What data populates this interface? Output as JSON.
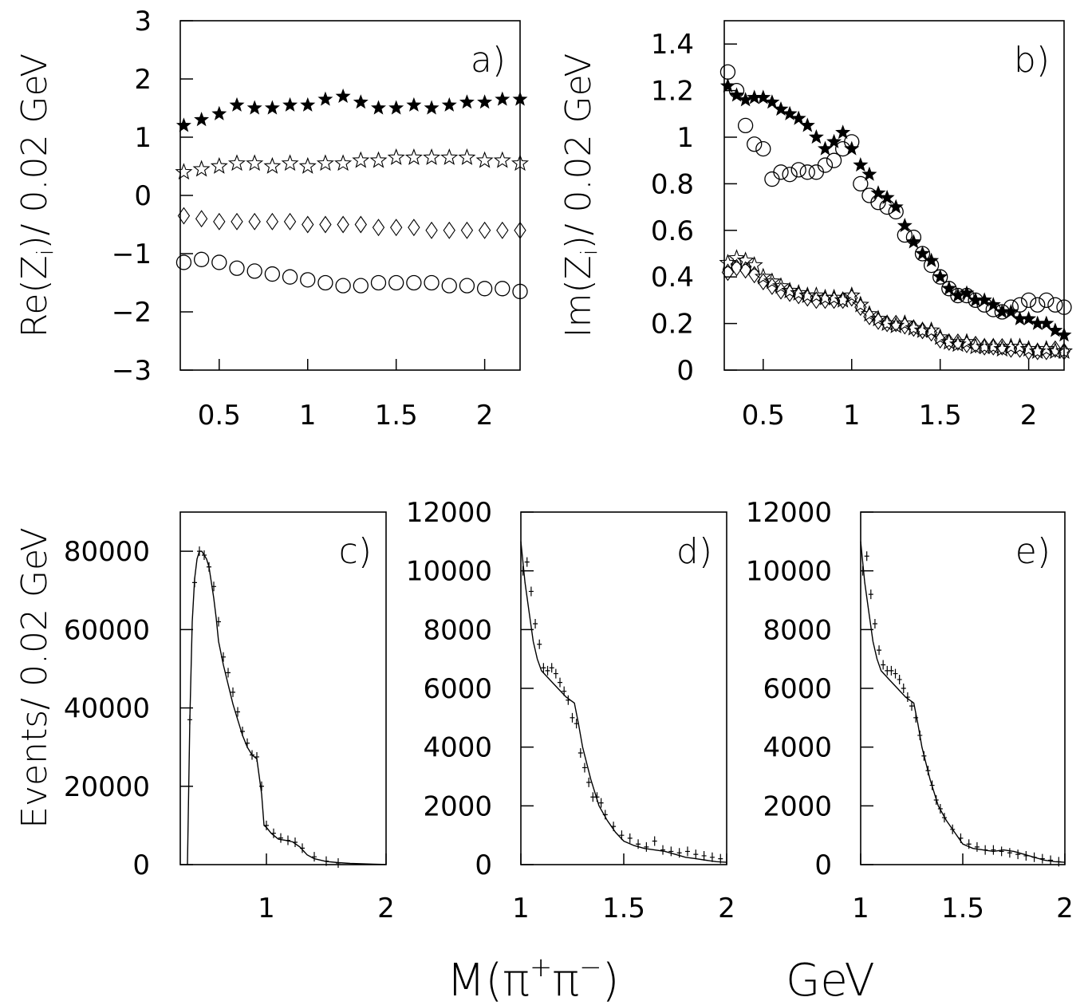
{
  "y_label_top_a": "Re(Z",
  "y_label_top_a_sub": "i",
  "y_label_top_a_rest": ")/ 0.02 GeV",
  "y_label_top_b": "Im(Z",
  "y_label_top_b_sub": "i",
  "y_label_top_b_rest": ")/ 0.02 GeV",
  "y_label_bottom": "Events/ 0.02 GeV",
  "x_label_main": "M(π",
  "x_label_sup1": "+",
  "x_label_mid": "π",
  "x_label_sup2": "−",
  "x_label_close": ")",
  "x_label_unit": "GeV",
  "chart_data": [
    {
      "panel": "a)",
      "type": "scatter",
      "xlim": [
        0.28,
        2.2
      ],
      "ylim": [
        -3,
        3
      ],
      "xticks": [
        "0.5",
        "1",
        "1.5",
        "2"
      ],
      "yticks": [
        "−3",
        "−2",
        "−1",
        "0",
        "1",
        "2",
        "3"
      ],
      "series": [
        {
          "marker": "filled-star",
          "x": [
            0.3,
            0.4,
            0.5,
            0.6,
            0.7,
            0.8,
            0.9,
            1.0,
            1.1,
            1.2,
            1.3,
            1.4,
            1.5,
            1.6,
            1.7,
            1.8,
            1.9,
            2.0,
            2.1,
            2.2
          ],
          "y": [
            1.2,
            1.3,
            1.4,
            1.55,
            1.5,
            1.5,
            1.55,
            1.55,
            1.65,
            1.7,
            1.6,
            1.5,
            1.5,
            1.55,
            1.5,
            1.55,
            1.6,
            1.6,
            1.65,
            1.65
          ]
        },
        {
          "marker": "open-star",
          "x": [
            0.3,
            0.4,
            0.5,
            0.6,
            0.7,
            0.8,
            0.9,
            1.0,
            1.1,
            1.2,
            1.3,
            1.4,
            1.5,
            1.6,
            1.7,
            1.8,
            1.9,
            2.0,
            2.1,
            2.2
          ],
          "y": [
            0.4,
            0.45,
            0.5,
            0.55,
            0.55,
            0.5,
            0.55,
            0.5,
            0.55,
            0.55,
            0.6,
            0.6,
            0.65,
            0.65,
            0.65,
            0.65,
            0.65,
            0.6,
            0.6,
            0.55
          ]
        },
        {
          "marker": "open-diamond",
          "x": [
            0.3,
            0.4,
            0.5,
            0.6,
            0.7,
            0.8,
            0.9,
            1.0,
            1.1,
            1.2,
            1.3,
            1.4,
            1.5,
            1.6,
            1.7,
            1.8,
            1.9,
            2.0,
            2.1,
            2.2
          ],
          "y": [
            -0.35,
            -0.4,
            -0.45,
            -0.45,
            -0.45,
            -0.45,
            -0.45,
            -0.5,
            -0.5,
            -0.5,
            -0.5,
            -0.55,
            -0.55,
            -0.55,
            -0.6,
            -0.6,
            -0.6,
            -0.6,
            -0.6,
            -0.6
          ]
        },
        {
          "marker": "open-circle",
          "x": [
            0.3,
            0.4,
            0.5,
            0.6,
            0.7,
            0.8,
            0.9,
            1.0,
            1.1,
            1.2,
            1.3,
            1.4,
            1.5,
            1.6,
            1.7,
            1.8,
            1.9,
            2.0,
            2.1,
            2.2
          ],
          "y": [
            -1.15,
            -1.1,
            -1.15,
            -1.25,
            -1.3,
            -1.35,
            -1.4,
            -1.45,
            -1.5,
            -1.55,
            -1.55,
            -1.5,
            -1.5,
            -1.5,
            -1.5,
            -1.55,
            -1.55,
            -1.6,
            -1.6,
            -1.65
          ]
        }
      ]
    },
    {
      "panel": "b)",
      "type": "scatter",
      "xlim": [
        0.28,
        2.2
      ],
      "ylim": [
        0,
        1.5
      ],
      "xticks": [
        "0.5",
        "1",
        "1.5",
        "2"
      ],
      "yticks": [
        "0",
        "0.2",
        "0.4",
        "0.6",
        "0.8",
        "1",
        "1.2",
        "1.4"
      ],
      "series": [
        {
          "marker": "filled-star",
          "x": [
            0.3,
            0.35,
            0.4,
            0.45,
            0.5,
            0.55,
            0.6,
            0.65,
            0.7,
            0.75,
            0.8,
            0.85,
            0.9,
            0.95,
            1.0,
            1.05,
            1.1,
            1.15,
            1.2,
            1.25,
            1.3,
            1.35,
            1.4,
            1.45,
            1.5,
            1.55,
            1.6,
            1.65,
            1.7,
            1.75,
            1.8,
            1.85,
            1.9,
            1.95,
            2.0,
            2.05,
            2.1,
            2.15,
            2.2
          ],
          "y": [
            1.22,
            1.18,
            1.16,
            1.17,
            1.17,
            1.15,
            1.12,
            1.1,
            1.08,
            1.05,
            1.0,
            0.95,
            0.98,
            1.02,
            0.95,
            0.88,
            0.84,
            0.76,
            0.74,
            0.7,
            0.62,
            0.55,
            0.5,
            0.47,
            0.4,
            0.35,
            0.32,
            0.33,
            0.3,
            0.3,
            0.28,
            0.25,
            0.25,
            0.22,
            0.22,
            0.2,
            0.2,
            0.17,
            0.15
          ]
        },
        {
          "marker": "open-circle",
          "x": [
            0.3,
            0.35,
            0.4,
            0.45,
            0.5,
            0.55,
            0.6,
            0.65,
            0.7,
            0.75,
            0.8,
            0.85,
            0.9,
            0.95,
            1.0,
            1.05,
            1.1,
            1.15,
            1.2,
            1.25,
            1.3,
            1.35,
            1.4,
            1.45,
            1.5,
            1.55,
            1.6,
            1.65,
            1.7,
            1.75,
            1.8,
            1.85,
            1.9,
            1.95,
            2.0,
            2.05,
            2.1,
            2.15,
            2.2
          ],
          "y": [
            1.28,
            1.2,
            1.05,
            0.97,
            0.95,
            0.82,
            0.85,
            0.84,
            0.86,
            0.85,
            0.85,
            0.88,
            0.9,
            0.95,
            0.98,
            0.8,
            0.75,
            0.72,
            0.7,
            0.68,
            0.58,
            0.57,
            0.5,
            0.45,
            0.4,
            0.35,
            0.32,
            0.32,
            0.3,
            0.28,
            0.26,
            0.25,
            0.27,
            0.28,
            0.3,
            0.28,
            0.3,
            0.28,
            0.27
          ]
        },
        {
          "marker": "open-star",
          "x": [
            0.3,
            0.35,
            0.4,
            0.45,
            0.5,
            0.55,
            0.6,
            0.65,
            0.7,
            0.75,
            0.8,
            0.85,
            0.9,
            0.95,
            1.0,
            1.05,
            1.1,
            1.15,
            1.2,
            1.25,
            1.3,
            1.35,
            1.4,
            1.45,
            1.5,
            1.55,
            1.6,
            1.65,
            1.7,
            1.75,
            1.8,
            1.85,
            1.9,
            1.95,
            2.0,
            2.05,
            2.1,
            2.15,
            2.2
          ],
          "y": [
            0.46,
            0.48,
            0.47,
            0.45,
            0.4,
            0.38,
            0.36,
            0.34,
            0.33,
            0.32,
            0.32,
            0.31,
            0.31,
            0.3,
            0.32,
            0.28,
            0.24,
            0.22,
            0.2,
            0.19,
            0.2,
            0.18,
            0.17,
            0.17,
            0.14,
            0.12,
            0.11,
            0.12,
            0.1,
            0.1,
            0.1,
            0.09,
            0.1,
            0.1,
            0.09,
            0.08,
            0.09,
            0.08,
            0.08
          ]
        },
        {
          "marker": "open-diamond",
          "x": [
            0.3,
            0.35,
            0.4,
            0.45,
            0.5,
            0.55,
            0.6,
            0.65,
            0.7,
            0.75,
            0.8,
            0.85,
            0.9,
            0.95,
            1.0,
            1.05,
            1.1,
            1.15,
            1.2,
            1.25,
            1.3,
            1.35,
            1.4,
            1.45,
            1.5,
            1.55,
            1.6,
            1.65,
            1.7,
            1.75,
            1.8,
            1.85,
            1.9,
            1.95,
            2.0,
            2.05,
            2.1,
            2.15,
            2.2
          ],
          "y": [
            0.42,
            0.44,
            0.43,
            0.41,
            0.38,
            0.36,
            0.34,
            0.33,
            0.32,
            0.31,
            0.3,
            0.3,
            0.3,
            0.3,
            0.31,
            0.27,
            0.23,
            0.21,
            0.2,
            0.2,
            0.19,
            0.18,
            0.17,
            0.16,
            0.13,
            0.12,
            0.12,
            0.11,
            0.11,
            0.1,
            0.1,
            0.1,
            0.09,
            0.09,
            0.08,
            0.08,
            0.08,
            0.09,
            0.08
          ]
        }
      ]
    },
    {
      "panel": "c)",
      "type": "line",
      "xlim": [
        0.28,
        2.0
      ],
      "ylim": [
        0,
        90000
      ],
      "xticks": [
        "1",
        "2"
      ],
      "yticks": [
        "0",
        "20000",
        "40000",
        "60000",
        "80000"
      ],
      "fit_x": [
        0.34,
        0.36,
        0.38,
        0.4,
        0.42,
        0.44,
        0.46,
        0.48,
        0.5,
        0.52,
        0.54,
        0.56,
        0.58,
        0.6,
        0.64,
        0.68,
        0.72,
        0.76,
        0.8,
        0.84,
        0.88,
        0.92,
        0.96,
        0.98,
        1.0,
        1.04,
        1.1,
        1.16,
        1.22,
        1.28,
        1.34,
        1.4,
        1.5,
        1.6,
        1.7,
        1.8,
        1.9,
        2.0
      ],
      "fit_y": [
        0,
        37000,
        62000,
        73000,
        78000,
        80000,
        80000,
        79000,
        78000,
        76000,
        72000,
        68000,
        63000,
        57000,
        51000,
        46000,
        41000,
        37000,
        33000,
        30000,
        28000,
        27000,
        18000,
        10000,
        9500,
        8000,
        6500,
        6200,
        5800,
        4500,
        2500,
        1500,
        800,
        500,
        300,
        200,
        100,
        50
      ],
      "points_x": [
        0.36,
        0.4,
        0.44,
        0.48,
        0.52,
        0.56,
        0.6,
        0.64,
        0.68,
        0.72,
        0.76,
        0.8,
        0.84,
        0.88,
        0.92,
        0.96,
        1.0,
        1.06,
        1.12,
        1.18,
        1.24,
        1.3,
        1.4,
        1.5,
        1.6
      ],
      "points_y": [
        37000,
        72000,
        80000,
        79000,
        76000,
        71000,
        62000,
        53000,
        49000,
        44000,
        39000,
        34000,
        31000,
        28000,
        27500,
        20000,
        10000,
        8000,
        6800,
        6200,
        5700,
        4200,
        2000,
        900,
        400
      ]
    },
    {
      "panel": "d)",
      "type": "line",
      "xlim": [
        1.0,
        2.0
      ],
      "ylim": [
        0,
        12000
      ],
      "xticks": [
        "1",
        "1.5",
        "2"
      ],
      "yticks": [
        "0",
        "2000",
        "4000",
        "6000",
        "8000",
        "10000",
        "12000"
      ],
      "fit_x": [
        1.0,
        1.02,
        1.04,
        1.06,
        1.08,
        1.1,
        1.14,
        1.18,
        1.22,
        1.26,
        1.28,
        1.3,
        1.34,
        1.38,
        1.42,
        1.46,
        1.5,
        1.55,
        1.6,
        1.65,
        1.7,
        1.75,
        1.8,
        1.85,
        1.9,
        1.95,
        2.0
      ],
      "fit_y": [
        11000,
        9600,
        8600,
        7600,
        7000,
        6600,
        6300,
        6000,
        5700,
        5500,
        4800,
        4000,
        2900,
        2000,
        1500,
        1100,
        800,
        650,
        550,
        500,
        450,
        350,
        250,
        200,
        150,
        100,
        80
      ],
      "points_x": [
        1.01,
        1.03,
        1.05,
        1.07,
        1.09,
        1.11,
        1.13,
        1.15,
        1.17,
        1.19,
        1.21,
        1.23,
        1.25,
        1.27,
        1.29,
        1.31,
        1.33,
        1.35,
        1.37,
        1.39,
        1.41,
        1.45,
        1.49,
        1.53,
        1.57,
        1.61,
        1.65,
        1.69,
        1.73,
        1.77,
        1.81,
        1.85,
        1.89,
        1.93,
        1.97
      ],
      "points_y": [
        10000,
        10300,
        9300,
        8200,
        7500,
        6700,
        6600,
        6700,
        6500,
        6200,
        5900,
        5600,
        5000,
        4800,
        3800,
        3300,
        2800,
        2300,
        2300,
        2100,
        1700,
        1300,
        1000,
        900,
        700,
        600,
        800,
        500,
        450,
        400,
        450,
        350,
        300,
        250,
        200
      ]
    },
    {
      "panel": "e)",
      "type": "line",
      "xlim": [
        1.0,
        2.0
      ],
      "ylim": [
        0,
        12000
      ],
      "xticks": [
        "1",
        "1.5",
        "2"
      ],
      "yticks": [
        "0",
        "2000",
        "4000",
        "6000",
        "8000",
        "10000",
        "12000"
      ],
      "fit_x": [
        1.0,
        1.02,
        1.04,
        1.06,
        1.08,
        1.1,
        1.14,
        1.18,
        1.22,
        1.26,
        1.28,
        1.3,
        1.34,
        1.38,
        1.42,
        1.46,
        1.5,
        1.55,
        1.6,
        1.65,
        1.7,
        1.75,
        1.8,
        1.85,
        1.9,
        1.95,
        2.0
      ],
      "fit_y": [
        11000,
        9600,
        8600,
        7600,
        7000,
        6600,
        6300,
        6000,
        5700,
        5500,
        4800,
        4000,
        2900,
        2000,
        1500,
        1100,
        700,
        550,
        500,
        450,
        500,
        450,
        350,
        250,
        150,
        100,
        80
      ],
      "points_x": [
        1.01,
        1.03,
        1.05,
        1.07,
        1.09,
        1.11,
        1.13,
        1.15,
        1.17,
        1.19,
        1.21,
        1.23,
        1.25,
        1.27,
        1.29,
        1.31,
        1.33,
        1.35,
        1.37,
        1.39,
        1.41,
        1.45,
        1.49,
        1.53,
        1.57,
        1.61,
        1.65,
        1.69,
        1.73,
        1.77,
        1.81,
        1.85,
        1.89,
        1.93,
        1.97
      ],
      "points_y": [
        10000,
        10500,
        9200,
        8200,
        7300,
        6800,
        6600,
        6600,
        6500,
        6300,
        6000,
        5700,
        5400,
        5000,
        4400,
        3700,
        3200,
        2700,
        2200,
        1900,
        1600,
        1200,
        900,
        700,
        600,
        500,
        500,
        450,
        400,
        350,
        300,
        250,
        200,
        150,
        100
      ]
    }
  ]
}
